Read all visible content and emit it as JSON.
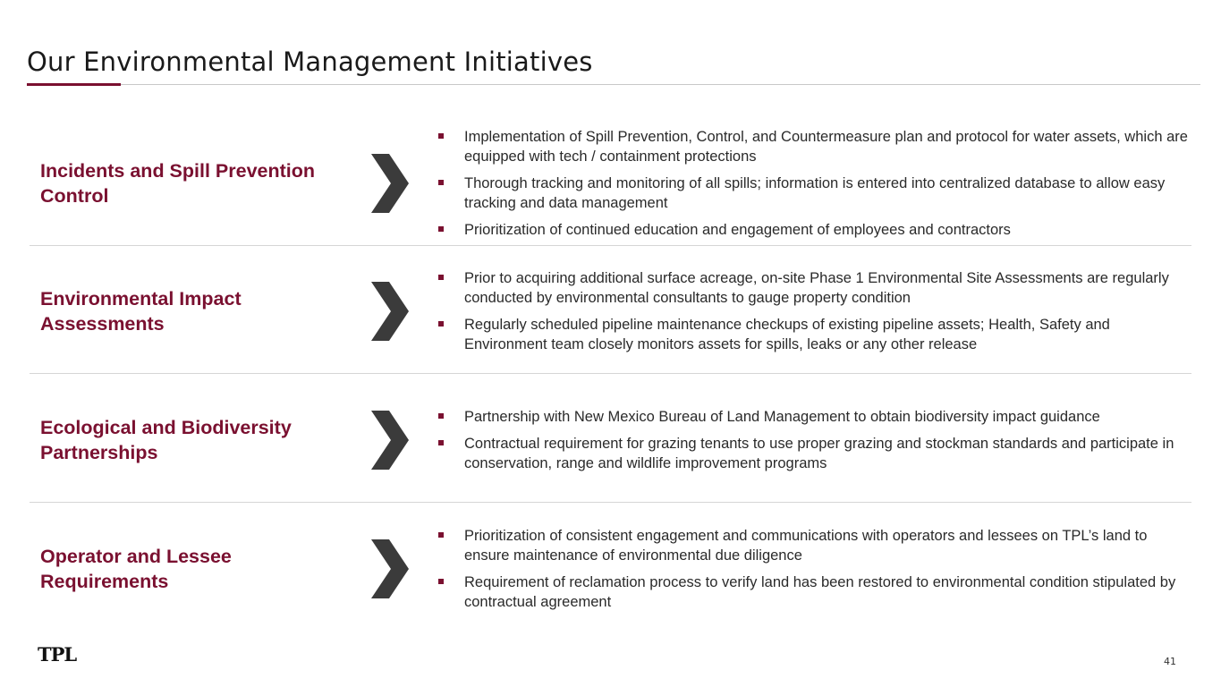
{
  "title": "Our Environmental Management Initiatives",
  "colors": {
    "accent": "#7a1030",
    "chevron": "#3b3b3b"
  },
  "rows": [
    {
      "heading": "Incidents and Spill Prevention Control",
      "bullets": [
        "Implementation of Spill Prevention, Control, and Countermeasure plan and protocol for water assets, which are equipped with tech / containment protections",
        "Thorough tracking and monitoring of all spills; information is entered into centralized database to allow easy tracking and data management",
        "Prioritization of continued education and engagement of employees and contractors"
      ]
    },
    {
      "heading": "Environmental Impact Assessments",
      "bullets": [
        "Prior to acquiring additional surface acreage, on-site Phase 1 Environmental Site Assessments are regularly conducted by environmental consultants to gauge property condition",
        "Regularly scheduled pipeline maintenance checkups of existing pipeline assets; Health, Safety and Environment team closely monitors assets for spills, leaks or any other release"
      ]
    },
    {
      "heading": "Ecological and Biodiversity Partnerships",
      "bullets": [
        "Partnership with New Mexico Bureau of Land Management to obtain biodiversity impact guidance",
        "Contractual requirement for grazing tenants to use proper grazing and stockman standards and participate in conservation, range and wildlife improvement programs"
      ]
    },
    {
      "heading": "Operator and Lessee Requirements",
      "bullets": [
        "Prioritization of consistent engagement and communications with operators and lessees on TPL’s land to ensure maintenance of environmental due diligence",
        "Requirement of reclamation process to verify land has been restored to environmental condition stipulated by contractual agreement"
      ]
    }
  ],
  "footer": {
    "logo": "TPL",
    "page_number": "41"
  }
}
